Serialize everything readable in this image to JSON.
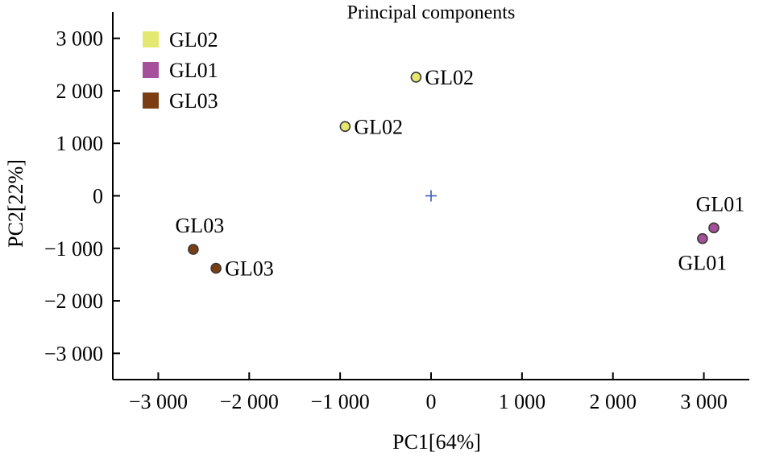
{
  "chart_data": {
    "type": "scatter",
    "title": "Principal components",
    "xlabel": "PC1[64%]",
    "ylabel": "PC2[22%]",
    "xlim": [
      -3500,
      3500
    ],
    "ylim": [
      -3500,
      3500
    ],
    "x_ticks": [
      -3000,
      -2000,
      -1000,
      0,
      1000,
      2000,
      3000
    ],
    "x_tick_labels": [
      "−3 000",
      "−2 000",
      "−1 000",
      "0",
      "1 000",
      "2 000",
      "3 000"
    ],
    "y_ticks": [
      3000,
      2000,
      1000,
      0,
      -1000,
      -2000,
      -3000
    ],
    "y_tick_labels": [
      "3 000",
      "2 000",
      "1 000",
      "0",
      "−1 000",
      "−2 000",
      "−3 000"
    ],
    "grid": false,
    "legend_position": "top-left",
    "origin_marker": {
      "symbol": "+",
      "x": 0,
      "y": 0,
      "color": "#3b5bb5"
    },
    "series": [
      {
        "name": "GL02",
        "color": "#e4e870",
        "points": [
          {
            "x": -945,
            "y": 1320,
            "label": "GL02",
            "label_side": "right"
          },
          {
            "x": -165,
            "y": 2260,
            "label": "GL02",
            "label_side": "right"
          }
        ]
      },
      {
        "name": "GL01",
        "color": "#a5509b",
        "points": [
          {
            "x": 3110,
            "y": -610,
            "label": "GL01",
            "label_side": "above"
          },
          {
            "x": 2985,
            "y": -815,
            "label": "GL01",
            "label_side": "below"
          }
        ]
      },
      {
        "name": "GL03",
        "color": "#7a3e12",
        "points": [
          {
            "x": -2615,
            "y": -1020,
            "label": "GL03",
            "label_side": "above"
          },
          {
            "x": -2365,
            "y": -1380,
            "label": "GL03",
            "label_side": "right"
          }
        ]
      }
    ]
  }
}
